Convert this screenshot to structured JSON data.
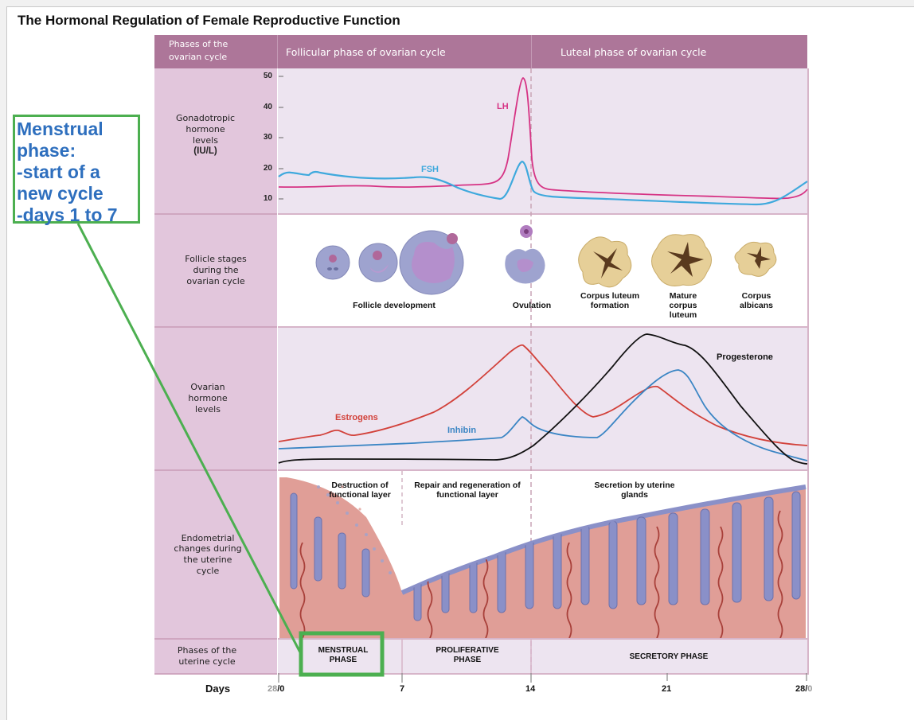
{
  "title": "The Hormonal Regulation of Female Reproductive Function",
  "header": {
    "row_label": "Phases of the ovarian cycle",
    "follicular": "Follicular phase of ovarian cycle",
    "luteal": "Luteal phase of ovarian cycle"
  },
  "gonadotropic": {
    "row_label_lines": [
      "Gonadotropic",
      "hormone",
      "levels"
    ],
    "unit": "(IU/L)",
    "ticks": [
      "50",
      "40",
      "30",
      "20",
      "10"
    ],
    "fsh_label": "FSH",
    "lh_label": "LH"
  },
  "follicle": {
    "row_label": "Follicle stages during the ovarian cycle",
    "captions": {
      "development": "Follicle development",
      "ovulation": "Ovulation",
      "cl_formation": "Corpus luteum formation",
      "mature_cl": "Mature corpus luteum",
      "albicans": "Corpus albicans"
    }
  },
  "ovarian": {
    "row_label": "Ovarian hormone levels",
    "estrogens_label": "Estrogens",
    "inhibin_label": "Inhibin",
    "progesterone_label": "Progesterone"
  },
  "endometrial": {
    "row_label": "Endometrial changes during the uterine cycle",
    "destruction": "Destruction of functional layer",
    "repair": "Repair and regeneration of functional layer",
    "secretion": "Secretion by uterine glands"
  },
  "uterine_phases": {
    "row_label": "Phases of the uterine cycle",
    "menstrual": "MENSTRUAL PHASE",
    "proliferative": "PROLIFERATIVE PHASE",
    "secretory": "SECRETORY PHASE"
  },
  "days": {
    "label": "Days",
    "start_grey": "28",
    "start_black": "/0",
    "d7": "7",
    "d14": "14",
    "d21": "21",
    "end_black": "28/",
    "end_grey": "0"
  },
  "callout": {
    "text": "Menstrual\nphase:\n-start of a\nnew cycle\n-days 1 to 7"
  },
  "colors": {
    "header": "#ad7699",
    "label_bg": "#e2c6dc",
    "panel_bg": "#ede4f0",
    "lh": "#d63384",
    "fsh": "#3fa9dd",
    "estrogens": "#d2413a",
    "inhibin": "#3a85c4",
    "progesterone": "#111111",
    "callout_border": "#4caf50",
    "callout_text": "#2e6fbe"
  }
}
